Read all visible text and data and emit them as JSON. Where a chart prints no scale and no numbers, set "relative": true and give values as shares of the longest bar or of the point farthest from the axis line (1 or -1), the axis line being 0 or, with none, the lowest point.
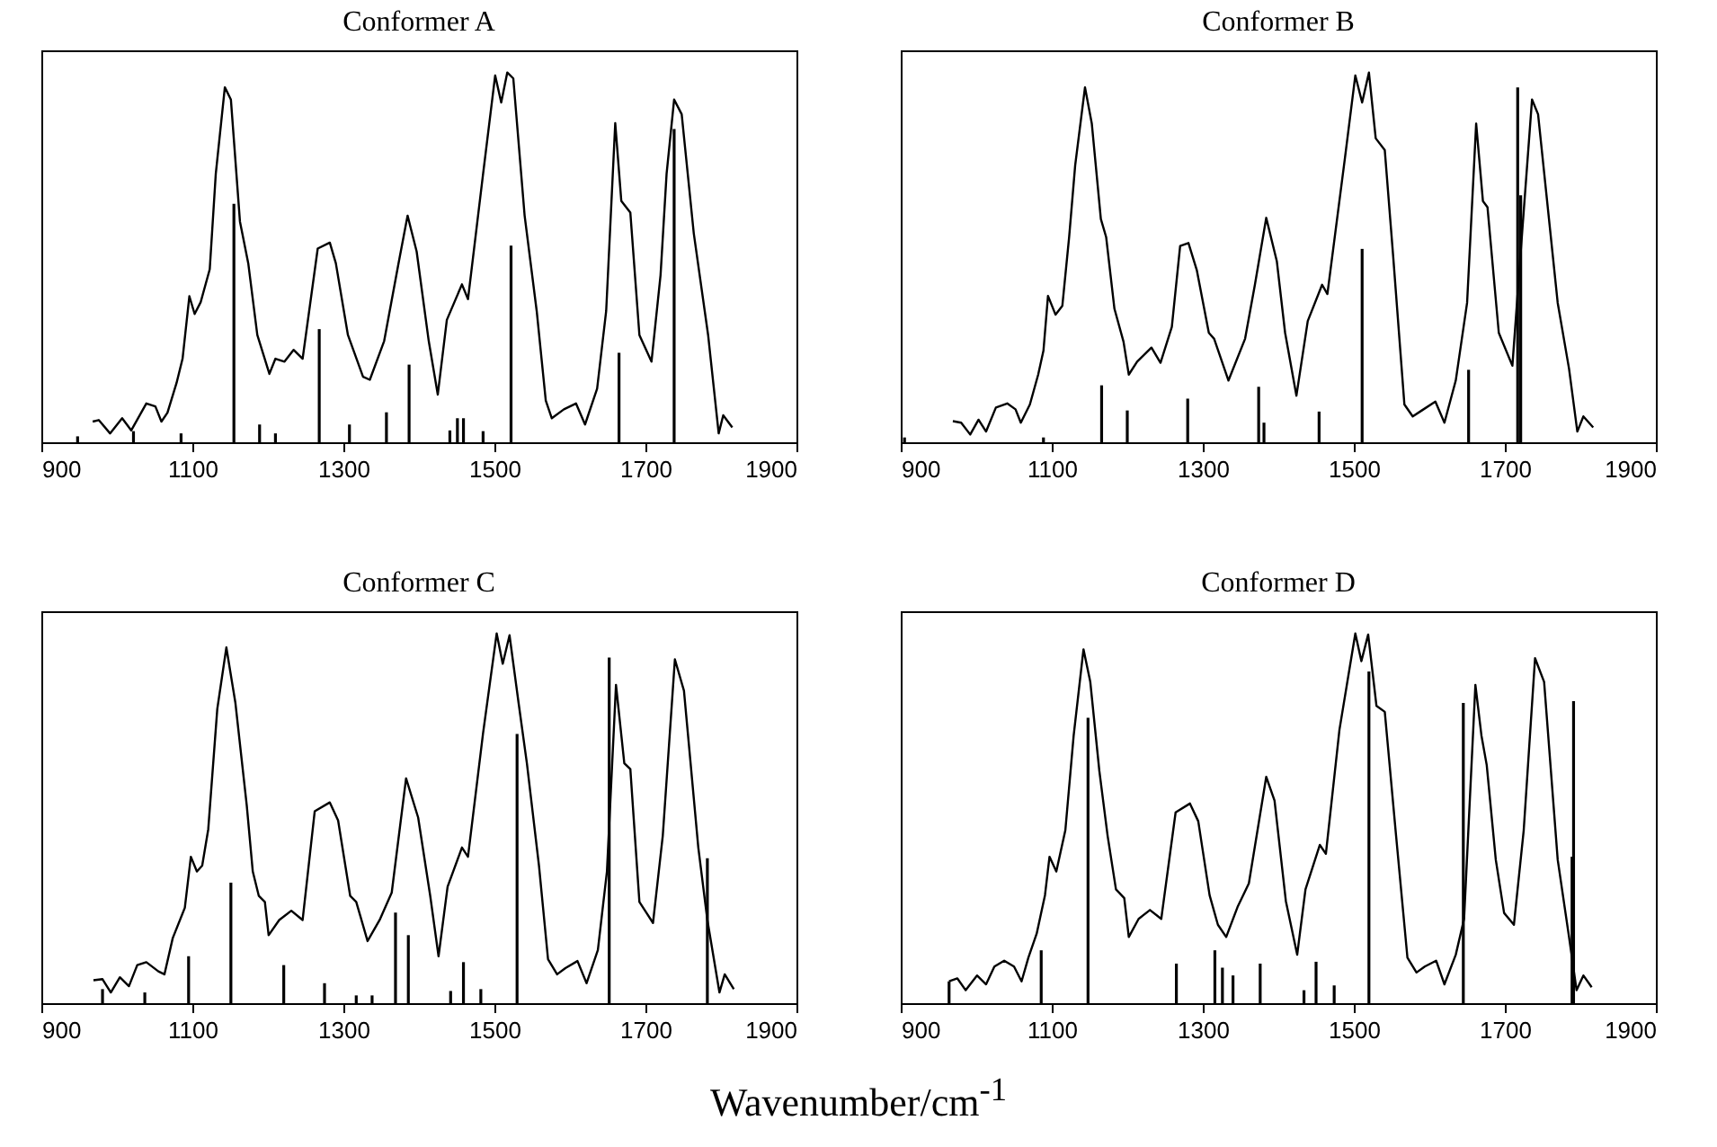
{
  "chart_data": [
    {
      "type": "line",
      "title": "Conformer A",
      "relative": true,
      "xlim": [
        900,
        1900
      ],
      "xticks": [
        900,
        1100,
        1300,
        1500,
        1700,
        1900
      ],
      "series": [
        {
          "color": "#000000",
          "x": [
            968,
            976,
            991,
            1007,
            1019,
            1039,
            1051,
            1059,
            1067,
            1079,
            1087,
            1096,
            1103,
            1111,
            1123,
            1131,
            1143,
            1151,
            1163,
            1174,
            1186,
            1202,
            1210,
            1222,
            1234,
            1246,
            1266,
            1282,
            1290,
            1306,
            1326,
            1335,
            1354,
            1373,
            1385,
            1397,
            1413,
            1425,
            1437,
            1457,
            1465,
            1485,
            1501,
            1509,
            1517,
            1525,
            1540,
            1556,
            1568,
            1576,
            1592,
            1608,
            1620,
            1636,
            1648,
            1660,
            1668,
            1680,
            1692,
            1708,
            1720,
            1728,
            1738,
            1748,
            1764,
            1783,
            1797,
            1803,
            1815
          ],
          "values": [
            0.056,
            0.06,
            0.024,
            0.065,
            0.032,
            0.105,
            0.097,
            0.056,
            0.08,
            0.16,
            0.226,
            0.395,
            0.347,
            0.379,
            0.468,
            0.726,
            0.96,
            0.927,
            0.597,
            0.484,
            0.29,
            0.185,
            0.226,
            0.218,
            0.25,
            0.226,
            0.524,
            0.54,
            0.484,
            0.29,
            0.177,
            0.169,
            0.274,
            0.484,
            0.613,
            0.516,
            0.274,
            0.129,
            0.331,
            0.427,
            0.387,
            0.726,
            0.992,
            0.919,
            1.0,
            0.984,
            0.613,
            0.355,
            0.113,
            0.065,
            0.089,
            0.105,
            0.048,
            0.145,
            0.355,
            0.863,
            0.653,
            0.621,
            0.29,
            0.218,
            0.452,
            0.726,
            0.927,
            0.887,
            0.565,
            0.29,
            0.024,
            0.073,
            0.04
          ]
        },
        {
          "type": "bar",
          "color": "#000000",
          "x": [
            948,
            1022,
            1085,
            1155,
            1189,
            1210,
            1268,
            1308,
            1357,
            1387,
            1441,
            1451,
            1459,
            1485,
            1522,
            1665,
            1738
          ],
          "values": [
            0.016,
            0.03,
            0.024,
            0.645,
            0.048,
            0.024,
            0.306,
            0.048,
            0.081,
            0.21,
            0.032,
            0.065,
            0.065,
            0.03,
            0.532,
            0.242,
            0.847
          ]
        }
      ]
    },
    {
      "type": "line",
      "title": "Conformer B",
      "relative": true,
      "xlim": [
        900,
        1900
      ],
      "xticks": [
        900,
        1100,
        1300,
        1500,
        1700,
        1900
      ],
      "series": [
        {
          "color": "#000000",
          "x": [
            969,
            980,
            992,
            1003,
            1013,
            1026,
            1041,
            1052,
            1059,
            1071,
            1082,
            1089,
            1095,
            1105,
            1114,
            1123,
            1131,
            1144,
            1153,
            1165,
            1172,
            1183,
            1195,
            1202,
            1213,
            1232,
            1244,
            1259,
            1270,
            1281,
            1292,
            1308,
            1315,
            1334,
            1356,
            1369,
            1384,
            1398,
            1409,
            1424,
            1439,
            1458,
            1465,
            1488,
            1502,
            1511,
            1520,
            1529,
            1541,
            1552,
            1567,
            1578,
            1590,
            1608,
            1620,
            1635,
            1650,
            1662,
            1671,
            1677,
            1692,
            1710,
            1721,
            1736,
            1744,
            1770,
            1785,
            1796,
            1804,
            1817
          ],
          "values": [
            0.057,
            0.053,
            0.021,
            0.061,
            0.029,
            0.094,
            0.105,
            0.089,
            0.053,
            0.102,
            0.183,
            0.248,
            0.396,
            0.345,
            0.369,
            0.555,
            0.749,
            0.96,
            0.862,
            0.604,
            0.555,
            0.361,
            0.272,
            0.183,
            0.218,
            0.256,
            0.215,
            0.312,
            0.531,
            0.539,
            0.466,
            0.296,
            0.28,
            0.167,
            0.28,
            0.426,
            0.607,
            0.49,
            0.296,
            0.126,
            0.328,
            0.426,
            0.401,
            0.765,
            0.992,
            0.919,
            1.0,
            0.822,
            0.79,
            0.506,
            0.102,
            0.07,
            0.086,
            0.11,
            0.053,
            0.167,
            0.377,
            0.862,
            0.652,
            0.636,
            0.296,
            0.207,
            0.515,
            0.927,
            0.887,
            0.377,
            0.199,
            0.029,
            0.07,
            0.04
          ]
        },
        {
          "type": "bar",
          "color": "#000000",
          "x": [
            905,
            1089,
            1166,
            1200,
            1280,
            1374,
            1381,
            1454,
            1511,
            1652,
            1717,
            1721
          ],
          "values": [
            0.013,
            0.013,
            0.154,
            0.086,
            0.118,
            0.15,
            0.053,
            0.083,
            0.523,
            0.196,
            0.96,
            0.668
          ]
        }
      ]
    },
    {
      "type": "line",
      "title": "Conformer C",
      "xlabel": "Wavenumber/cm$^{-1}$",
      "relative": true,
      "xlim": [
        900,
        1900
      ],
      "xticks": [
        900,
        1100,
        1300,
        1500,
        1700,
        1900
      ],
      "series": [
        {
          "color": "#000000",
          "x": [
            969,
            981,
            992,
            1004,
            1016,
            1027,
            1039,
            1055,
            1063,
            1074,
            1090,
            1098,
            1106,
            1113,
            1121,
            1133,
            1145,
            1157,
            1172,
            1180,
            1188,
            1196,
            1201,
            1215,
            1231,
            1246,
            1262,
            1282,
            1293,
            1309,
            1317,
            1332,
            1348,
            1364,
            1383,
            1399,
            1415,
            1426,
            1438,
            1457,
            1465,
            1485,
            1503,
            1511,
            1520,
            1532,
            1543,
            1559,
            1571,
            1583,
            1594,
            1610,
            1622,
            1637,
            1649,
            1661,
            1672,
            1680,
            1692,
            1710,
            1723,
            1739,
            1751,
            1770,
            1782,
            1798,
            1805,
            1817
          ],
          "values": [
            0.062,
            0.065,
            0.029,
            0.07,
            0.046,
            0.103,
            0.111,
            0.086,
            0.078,
            0.176,
            0.258,
            0.396,
            0.356,
            0.372,
            0.47,
            0.796,
            0.962,
            0.812,
            0.535,
            0.356,
            0.29,
            0.274,
            0.184,
            0.225,
            0.25,
            0.225,
            0.519,
            0.543,
            0.494,
            0.29,
            0.274,
            0.168,
            0.225,
            0.299,
            0.608,
            0.502,
            0.29,
            0.127,
            0.315,
            0.421,
            0.396,
            0.731,
            1.0,
            0.918,
            0.995,
            0.812,
            0.649,
            0.372,
            0.119,
            0.078,
            0.095,
            0.114,
            0.054,
            0.144,
            0.356,
            0.861,
            0.649,
            0.633,
            0.274,
            0.217,
            0.454,
            0.93,
            0.845,
            0.421,
            0.225,
            0.029,
            0.078,
            0.038
          ]
        },
        {
          "type": "bar",
          "color": "#000000",
          "x": [
            981,
            1037,
            1095,
            1151,
            1221,
            1275,
            1317,
            1338,
            1369,
            1386,
            1442,
            1459,
            1482,
            1530,
            1652,
            1780,
            1782
          ],
          "values": [
            0.038,
            0.029,
            0.127,
            0.326,
            0.103,
            0.054,
            0.021,
            0.021,
            0.245,
            0.184,
            0.033,
            0.111,
            0.038,
            0.728,
            0.935,
            null,
            0.392
          ]
        }
      ]
    },
    {
      "type": "line",
      "title": "Conformer D",
      "relative": true,
      "xlim": [
        900,
        1900
      ],
      "xticks": [
        900,
        1100,
        1300,
        1500,
        1700,
        1900
      ],
      "series": [
        {
          "color": "#000000",
          "x": [
            964,
            975,
            986,
            1001,
            1013,
            1024,
            1037,
            1050,
            1060,
            1069,
            1080,
            1091,
            1097,
            1106,
            1118,
            1129,
            1142,
            1151,
            1163,
            1174,
            1185,
            1196,
            1202,
            1215,
            1230,
            1245,
            1264,
            1283,
            1294,
            1309,
            1320,
            1331,
            1346,
            1361,
            1384,
            1395,
            1410,
            1425,
            1436,
            1455,
            1463,
            1481,
            1502,
            1510,
            1519,
            1530,
            1541,
            1556,
            1571,
            1583,
            1594,
            1609,
            1620,
            1635,
            1646,
            1661,
            1669,
            1676,
            1688,
            1699,
            1712,
            1725,
            1740,
            1752,
            1770,
            1785,
            1795,
            1804,
            1815
          ],
          "values": [
            0.059,
            0.067,
            0.035,
            0.075,
            0.051,
            0.099,
            0.115,
            0.099,
            0.059,
            0.123,
            0.188,
            0.292,
            0.396,
            0.356,
            0.468,
            0.724,
            0.957,
            0.869,
            0.628,
            0.452,
            0.308,
            0.284,
            0.179,
            0.228,
            0.252,
            0.228,
            0.516,
            0.54,
            0.492,
            0.292,
            0.212,
            0.179,
            0.26,
            0.324,
            0.612,
            0.548,
            0.276,
            0.131,
            0.308,
            0.428,
            0.404,
            0.74,
            1.0,
            0.925,
            0.997,
            0.804,
            0.788,
            0.452,
            0.123,
            0.083,
            0.099,
            0.115,
            0.051,
            0.131,
            0.228,
            0.861,
            0.724,
            0.644,
            0.388,
            0.244,
            0.212,
            0.468,
            0.933,
            0.869,
            0.388,
            0.179,
            0.035,
            0.075,
            0.043
          ]
        },
        {
          "type": "bar",
          "color": "#000000",
          "x": [
            964,
            1086,
            1148,
            1265,
            1316,
            1326,
            1340,
            1376,
            1434,
            1450,
            1474,
            1520,
            1645,
            1789,
            1791
          ],
          "values": [
            0.059,
            0.143,
            0.772,
            0.107,
            0.143,
            0.096,
            0.075,
            0.107,
            0.035,
            0.112,
            0.048,
            0.897,
            0.812,
            0.396,
            0.817
          ]
        }
      ]
    }
  ]
}
